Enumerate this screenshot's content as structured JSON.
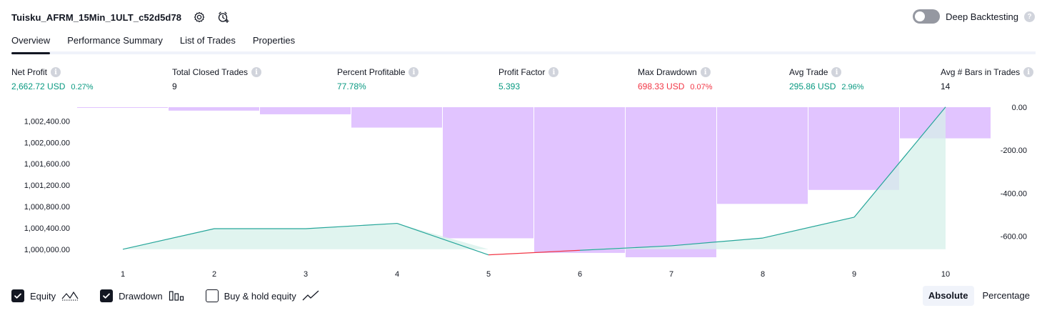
{
  "header": {
    "strategy_name": "Tuisku_AFRM_15Min_1ULT_c52d5d78",
    "icons": [
      "settings-icon",
      "add-alert-icon"
    ]
  },
  "deep_backtesting": {
    "label": "Deep Backtesting",
    "enabled": false,
    "help": "?"
  },
  "tabs": [
    {
      "label": "Overview",
      "active": true
    },
    {
      "label": "Performance Summary",
      "active": false
    },
    {
      "label": "List of Trades",
      "active": false
    },
    {
      "label": "Properties",
      "active": false
    }
  ],
  "metrics": [
    {
      "label": "Net Profit",
      "value": "2,662.72 USD",
      "pct": "0.27%",
      "color": "#089981"
    },
    {
      "label": "Total Closed Trades",
      "value": "9",
      "pct": "",
      "color": "#131722"
    },
    {
      "label": "Percent Profitable",
      "value": "77.78%",
      "pct": "",
      "color": "#089981"
    },
    {
      "label": "Profit Factor",
      "value": "5.393",
      "pct": "",
      "color": "#089981"
    },
    {
      "label": "Max Drawdown",
      "value": "698.33 USD",
      "pct": "0.07%",
      "color": "#f23645"
    },
    {
      "label": "Avg Trade",
      "value": "295.86 USD",
      "pct": "2.96%",
      "color": "#089981"
    },
    {
      "label": "Avg # Bars in Trades",
      "value": "14",
      "pct": "",
      "color": "#131722"
    }
  ],
  "colors": {
    "equity_line": "#26a69a",
    "equity_below_line": "#f23645",
    "equity_fill": "#d6f0ea",
    "drawdown_fill": "#e1c4ff",
    "positive": "#089981",
    "negative": "#f23645"
  },
  "chart_data": {
    "type": "line",
    "x": [
      1,
      2,
      3,
      4,
      5,
      6,
      7,
      8,
      9,
      10
    ],
    "x_tick_labels": [
      "1",
      "2",
      "3",
      "4",
      "5",
      "6",
      "7",
      "8",
      "9",
      "10"
    ],
    "left_axis": {
      "ticks": [
        "1,000,000.00",
        "1,000,400.00",
        "1,000,800.00",
        "1,001,200.00",
        "1,001,600.00",
        "1,002,000.00",
        "1,002,400.00"
      ],
      "tick_values": [
        1000000,
        1000400,
        1000800,
        1001200,
        1001600,
        1002000,
        1002400
      ],
      "range": [
        999850,
        1002660
      ]
    },
    "right_axis": {
      "ticks": [
        "0.00",
        "-200.00",
        "-400.00",
        "-600.00"
      ],
      "tick_values": [
        0,
        -200,
        -400,
        -600
      ],
      "range": [
        -698.33,
        0
      ]
    },
    "series": [
      {
        "name": "Equity",
        "axis": "left",
        "values": [
          1000000,
          1000385,
          1000385,
          1000485,
          999895,
          999980,
          1000065,
          1000210,
          1000600,
          1002662.72
        ]
      },
      {
        "name": "Drawdown",
        "axis": "right",
        "type": "bar",
        "values": [
          -2,
          -16,
          -33,
          -95,
          -610,
          -678,
          -698.33,
          -450,
          -385,
          -145
        ]
      }
    ]
  },
  "legend": {
    "items": [
      {
        "label": "Equity",
        "checked": true,
        "icon": "equity-line-icon"
      },
      {
        "label": "Drawdown",
        "checked": true,
        "icon": "drawdown-bars-icon"
      },
      {
        "label": "Buy & hold equity",
        "checked": false,
        "icon": "buy-hold-line-icon"
      }
    ]
  },
  "scale": {
    "options": [
      "Absolute",
      "Percentage"
    ],
    "selected": "Absolute"
  }
}
